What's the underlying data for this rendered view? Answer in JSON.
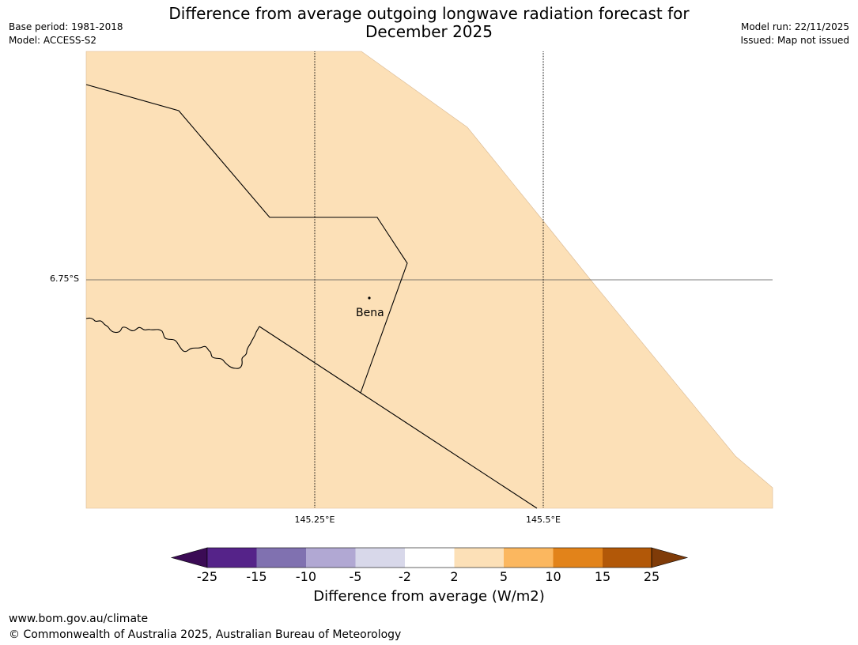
{
  "title": {
    "line1": "Difference from average outgoing longwave radiation forecast for",
    "line2": "December 2025"
  },
  "meta_left": {
    "base_period": "Base period: 1981-2018",
    "model": "Model: ACCESS-S2"
  },
  "meta_right": {
    "model_run": "Model run: 22/11/2025",
    "issued": "Issued: Map not issued"
  },
  "map": {
    "fill_color": "#fce0b7",
    "outside_color": "#ffffff",
    "lat_gridline_label": "6.75°S",
    "lon_gridline_labels": [
      "145.25°E",
      "145.5°E"
    ],
    "place": {
      "name": "Bena"
    }
  },
  "colorbar": {
    "tick_labels": [
      "-25",
      "-15",
      "-10",
      "-5",
      "-2",
      "2",
      "5",
      "10",
      "15",
      "25"
    ],
    "colors": [
      "#552389",
      "#8071b0",
      "#b1a8d3",
      "#d8d8ea",
      "#ffffff",
      "#fce0b7",
      "#fbb75f",
      "#e2831a",
      "#b25808"
    ],
    "under_color": "#3b0b55",
    "over_color": "#7f3b08",
    "label": "Difference from average (W/m2)"
  },
  "footer": {
    "url": "www.bom.gov.au/climate",
    "copyright": "© Commonwealth of Australia 2025, Australian Bureau of Meteorology"
  }
}
